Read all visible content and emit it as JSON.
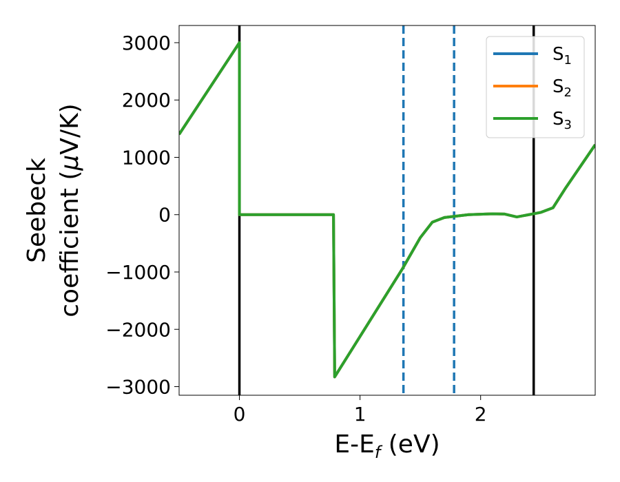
{
  "chart_data": {
    "type": "line",
    "xlabel": {
      "base": "E-E",
      "sub": "f",
      "tail": " (eV)"
    },
    "ylabel": {
      "line1": "Seebeck",
      "line2_pre": "coefficient  (",
      "mu": "μ",
      "line2_post": "V/K)"
    },
    "xlim": [
      -0.5,
      2.95
    ],
    "ylim": [
      -3150,
      3300
    ],
    "xticks": [
      0,
      1,
      2
    ],
    "xtick_labels": [
      "0",
      "1",
      "2"
    ],
    "yticks": [
      -3000,
      -2000,
      -1000,
      0,
      1000,
      2000,
      3000
    ],
    "ytick_labels": [
      "−3000",
      "−2000",
      "−1000",
      "0",
      "1000",
      "2000",
      "3000"
    ],
    "grid": false,
    "legend_position": "top-right",
    "series": [
      {
        "name": "S",
        "sub": "1",
        "color": "#1f77b4",
        "x": [
          -0.5,
          0.0,
          0.0,
          0.78,
          0.79,
          1.35,
          1.5,
          1.6,
          1.7,
          1.9,
          2.1,
          2.2,
          2.3,
          2.4,
          2.5,
          2.6,
          2.7,
          2.95
        ],
        "y": [
          1400,
          3000,
          0,
          0,
          -2830,
          -950,
          -400,
          -130,
          -50,
          0,
          15,
          10,
          -40,
          0,
          40,
          120,
          450,
          1220
        ]
      },
      {
        "name": "S",
        "sub": "2",
        "color": "#ff7f0e",
        "x": [
          -0.5,
          0.0,
          0.0,
          0.78,
          0.79,
          1.35,
          1.5,
          1.6,
          1.7,
          1.9,
          2.1,
          2.2,
          2.3,
          2.4,
          2.5,
          2.6,
          2.7,
          2.95
        ],
        "y": [
          1400,
          3000,
          0,
          0,
          -2830,
          -950,
          -400,
          -130,
          -50,
          0,
          15,
          10,
          -40,
          0,
          40,
          120,
          450,
          1220
        ]
      },
      {
        "name": "S",
        "sub": "3",
        "color": "#2ca02c",
        "x": [
          -0.5,
          0.0,
          0.0,
          0.78,
          0.79,
          1.35,
          1.5,
          1.6,
          1.7,
          1.9,
          2.1,
          2.2,
          2.3,
          2.4,
          2.5,
          2.6,
          2.7,
          2.95
        ],
        "y": [
          1400,
          3000,
          0,
          0,
          -2830,
          -950,
          -400,
          -130,
          -50,
          0,
          15,
          10,
          -40,
          0,
          40,
          120,
          450,
          1220
        ]
      }
    ],
    "vlines": [
      {
        "x": 0.0,
        "color": "#000000",
        "style": "solid"
      },
      {
        "x": 2.44,
        "color": "#000000",
        "style": "solid"
      },
      {
        "x": 1.36,
        "color": "#1f77b4",
        "style": "dashed"
      },
      {
        "x": 1.78,
        "color": "#1f77b4",
        "style": "dashed"
      }
    ]
  }
}
